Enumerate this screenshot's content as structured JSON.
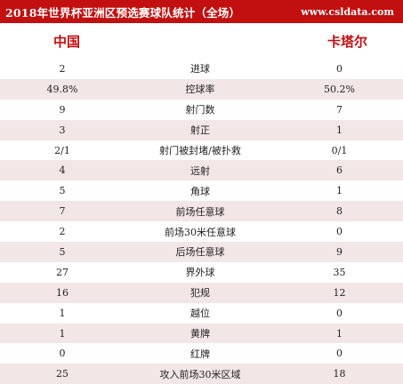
{
  "header": {
    "title": "2018年世界杯亚洲区预选赛球队统计（全场）",
    "site": "www.csldata.com"
  },
  "teams": {
    "home": "中国",
    "away": "卡塔尔"
  },
  "rows": [
    {
      "home": "2",
      "label": "进球",
      "away": "0"
    },
    {
      "home": "49.8%",
      "label": "控球率",
      "away": "50.2%"
    },
    {
      "home": "9",
      "label": "射门数",
      "away": "7"
    },
    {
      "home": "3",
      "label": "射正",
      "away": "1"
    },
    {
      "home": "2/1",
      "label": "射门被封堵/被扑救",
      "away": "0/1"
    },
    {
      "home": "4",
      "label": "远射",
      "away": "6"
    },
    {
      "home": "5",
      "label": "角球",
      "away": "1"
    },
    {
      "home": "7",
      "label": "前场任意球",
      "away": "8"
    },
    {
      "home": "2",
      "label": "前场30米任意球",
      "away": "0"
    },
    {
      "home": "5",
      "label": "后场任意球",
      "away": "9"
    },
    {
      "home": "27",
      "label": "界外球",
      "away": "35"
    },
    {
      "home": "16",
      "label": "犯规",
      "away": "12"
    },
    {
      "home": "1",
      "label": "越位",
      "away": "0"
    },
    {
      "home": "1",
      "label": "黄牌",
      "away": "1"
    },
    {
      "home": "0",
      "label": "红牌",
      "away": "0"
    },
    {
      "home": "25",
      "label": "攻入前场30米区域",
      "away": "18"
    }
  ]
}
